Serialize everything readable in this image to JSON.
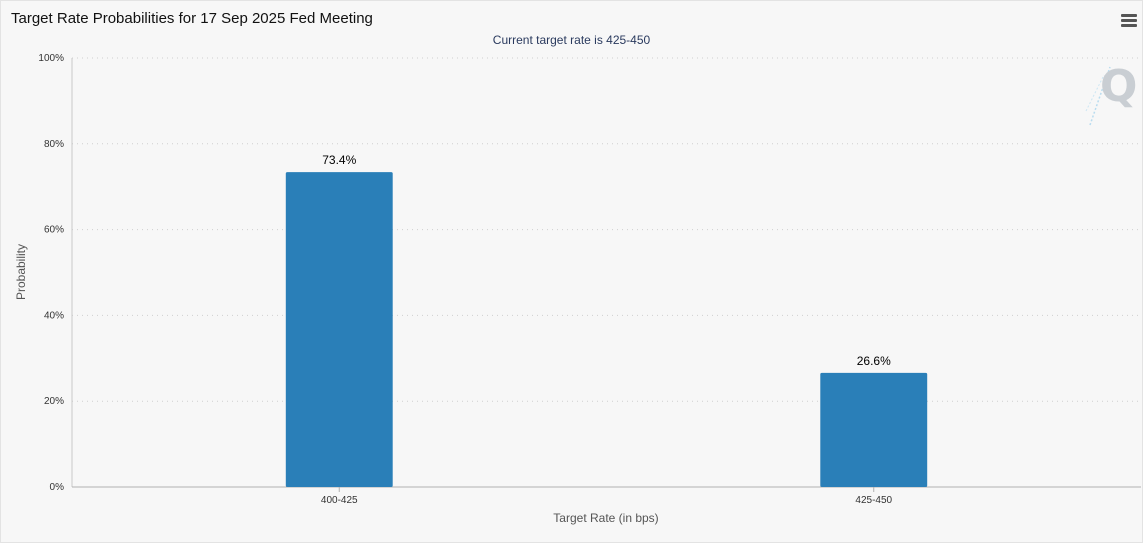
{
  "header": {
    "title": "Target Rate Probabilities for 17 Sep 2025 Fed Meeting",
    "subtitle": "Current target rate is 425-450",
    "menu_icon": "hamburger-menu-icon",
    "watermark_icon": "q-logo-icon"
  },
  "chart_data": {
    "type": "bar",
    "title": "Target Rate Probabilities for 17 Sep 2025 Fed Meeting",
    "subtitle": "Current target rate is 425-450",
    "categories": [
      "400-425",
      "425-450"
    ],
    "values": [
      73.4,
      26.6
    ],
    "value_labels": [
      "73.4%",
      "26.6%"
    ],
    "xlabel": "Target Rate (in bps)",
    "ylabel": "Probability",
    "ylim": [
      0,
      100
    ],
    "yticks": [
      0,
      20,
      40,
      60,
      80,
      100
    ],
    "ytick_labels": [
      "0%",
      "20%",
      "40%",
      "60%",
      "80%",
      "100%"
    ],
    "grid": true,
    "bar_color": "#2a7fb8"
  }
}
